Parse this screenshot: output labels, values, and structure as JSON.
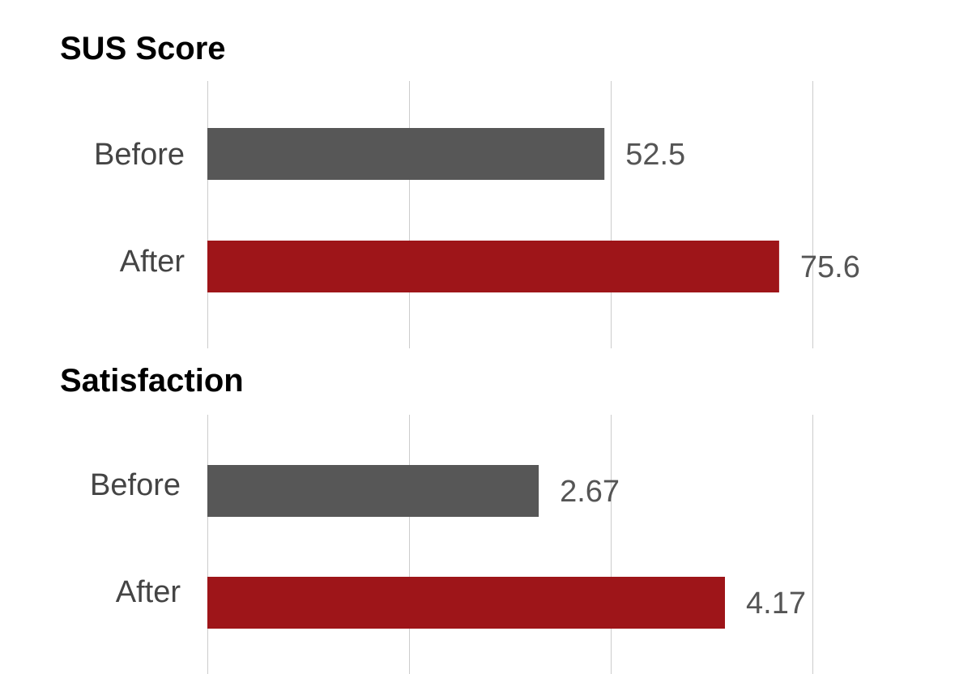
{
  "chart_data": [
    {
      "type": "bar",
      "orientation": "horizontal",
      "title": "SUS Score",
      "categories": [
        "Before",
        "After"
      ],
      "values": [
        52.5,
        75.6
      ],
      "value_labels": [
        "52.5",
        "75.6"
      ],
      "xlim": [
        0,
        80
      ],
      "grid": true,
      "bar_colors": [
        "#575757",
        "#9e1519"
      ]
    },
    {
      "type": "bar",
      "orientation": "horizontal",
      "title": "Satisfaction",
      "categories": [
        "Before",
        "After"
      ],
      "values": [
        2.67,
        4.17
      ],
      "value_labels": [
        "2.67",
        "4.17"
      ],
      "xlim": [
        0,
        4.875
      ],
      "grid": true,
      "bar_colors": [
        "#575757",
        "#9e1519"
      ]
    }
  ]
}
